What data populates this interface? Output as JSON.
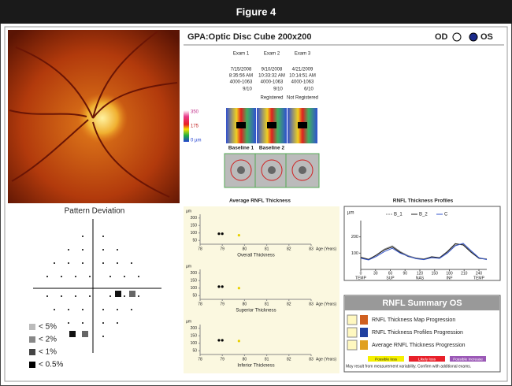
{
  "header": {
    "title": "Figure 4"
  },
  "pattern_deviation": {
    "title": "Pattern Deviation",
    "legend": [
      "< 5%",
      "< 2%",
      "< 1%",
      "< 0.5%"
    ]
  },
  "gpa": {
    "title": "GPA:Optic Disc Cube 200x200",
    "od": "OD",
    "os": "OS"
  },
  "exams": [
    {
      "name": "Exam 1",
      "date": "7/15/2008",
      "time": "8:35:56 AM",
      "id": "4000-1063",
      "quality": "9/10"
    },
    {
      "name": "Exam 2",
      "date": "9/10/2008",
      "time": "10:33:32 AM",
      "id": "4000-1063",
      "quality": "9/10",
      "status": "Registered"
    },
    {
      "name": "Exam 3",
      "date": "4/21/2009",
      "time": "10:14:51 AM",
      "id": "4000-1063",
      "quality": "6/10",
      "status": "Not Registered"
    }
  ],
  "scale": {
    "top": "350",
    "mid": "175",
    "bottom": "0 µm"
  },
  "baselines": [
    "Baseline 1",
    "Baseline 2"
  ],
  "avg_chart": {
    "title": "Average RNFL Thickness",
    "unit": "µm",
    "xlabel": "Age (Years)",
    "xlim": [
      78,
      83
    ],
    "xticks": [
      78,
      79,
      80,
      81,
      82,
      83
    ],
    "ylim": [
      25,
      225
    ],
    "yticks": [
      50,
      100,
      150,
      200
    ],
    "panels": [
      {
        "title": "Overall Thickness",
        "baseline": {
          "color": "#000000",
          "x": [
            78.85,
            79.0
          ],
          "values": [
            95,
            95
          ]
        },
        "current": {
          "color": "#e8d000",
          "x": [
            79.75
          ],
          "values": [
            85
          ]
        }
      },
      {
        "title": "Superior Thickness",
        "baseline": {
          "color": "#000000",
          "x": [
            78.85,
            79.0
          ],
          "values": [
            110,
            110
          ]
        },
        "current": {
          "color": "#e8d000",
          "x": [
            79.75
          ],
          "values": [
            100
          ]
        }
      },
      {
        "title": "Inferior Thickness",
        "baseline": {
          "color": "#000000",
          "x": [
            78.85,
            79.0
          ],
          "values": [
            120,
            120
          ]
        },
        "current": {
          "color": "#e8d000",
          "x": [
            79.75
          ],
          "values": [
            115
          ]
        }
      }
    ]
  },
  "profiles": {
    "title": "RNFL Thickness Profiles",
    "unit": "µm",
    "xlim": [
      0,
      256
    ],
    "xticks": [
      0,
      30,
      60,
      90,
      120,
      150,
      180,
      210,
      240
    ],
    "ylim": [
      0,
      300
    ],
    "yticks": [
      100,
      200
    ],
    "regions": [
      {
        "value": 0,
        "label": "TEMP"
      },
      {
        "value": 60,
        "label": "SUP"
      },
      {
        "value": 120,
        "label": "NAS"
      },
      {
        "value": 180,
        "label": "INF"
      },
      {
        "value": 240,
        "label": "TEMP"
      }
    ],
    "x": [
      0,
      16,
      32,
      48,
      64,
      80,
      96,
      112,
      128,
      144,
      160,
      176,
      192,
      208,
      224,
      240,
      256
    ],
    "series": [
      {
        "name": "B_1",
        "color": "#888888",
        "values": [
          70,
          60,
          90,
          125,
          145,
          110,
          85,
          70,
          65,
          75,
          70,
          105,
          150,
          155,
          110,
          70,
          65
        ]
      },
      {
        "name": "B_2",
        "color": "#222222",
        "values": [
          75,
          62,
          88,
          120,
          138,
          105,
          80,
          68,
          62,
          78,
          72,
          110,
          158,
          150,
          105,
          68,
          62
        ]
      },
      {
        "name": "C",
        "color": "#3355cc",
        "values": [
          68,
          58,
          80,
          110,
          130,
          100,
          82,
          66,
          60,
          72,
          68,
          100,
          145,
          160,
          115,
          72,
          60
        ]
      }
    ]
  },
  "summary": {
    "title": "RNFL Summary OS",
    "items": [
      "RNFL Thickness Map Progression",
      "RNFL Thickness Profiles Progression",
      "Average RNFL Thickness Progression"
    ],
    "legend": [
      {
        "label": "Possible loss",
        "color": "#f5f000"
      },
      {
        "label": "Likely loss",
        "color": "#e8202a"
      },
      {
        "label": "Possible Increase",
        "color": "#9b59b6"
      }
    ],
    "note": "May result from measurement variability. Confirm with additional exams."
  }
}
